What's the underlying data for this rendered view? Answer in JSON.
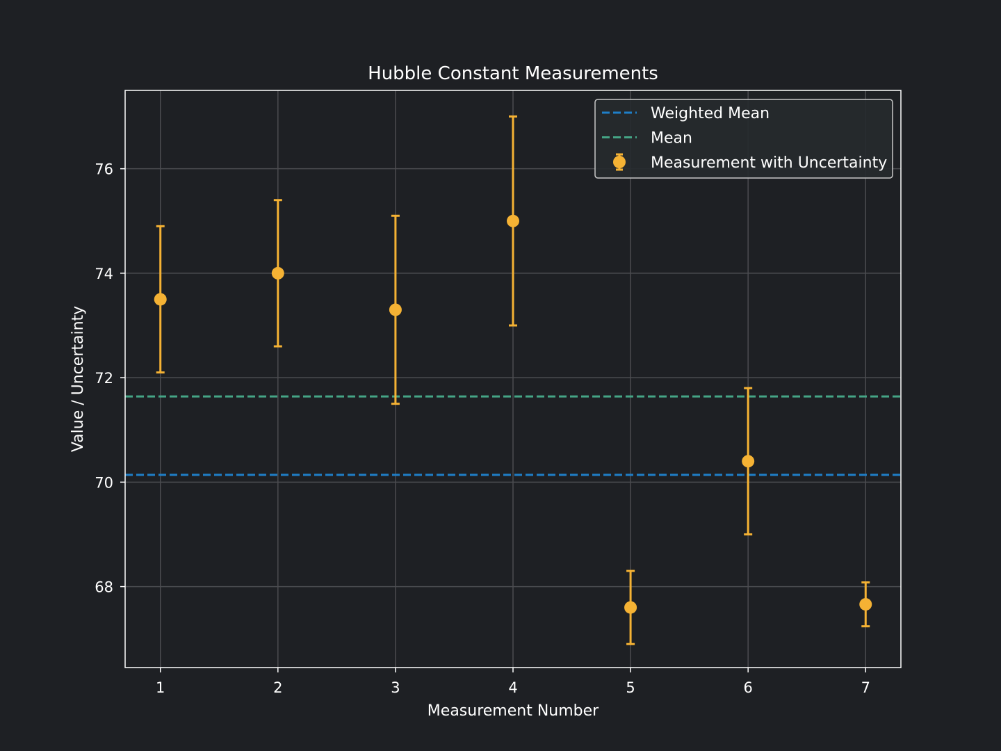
{
  "chart_data": {
    "type": "scatter",
    "title": "Hubble Constant Measurements",
    "xlabel": "Measurement Number",
    "ylabel": "Value / Uncertainty",
    "xlim": [
      0.7,
      7.3
    ],
    "ylim": [
      66.45,
      77.5
    ],
    "xticks": [
      1,
      2,
      3,
      4,
      5,
      6,
      7
    ],
    "yticks": [
      68,
      70,
      72,
      74,
      76
    ],
    "grid": true,
    "legend_placement": "top-right",
    "series": [
      {
        "name": "Measurement with Uncertainty",
        "kind": "errorbar",
        "color": "#f5b234",
        "x": [
          1,
          2,
          3,
          4,
          5,
          6,
          7
        ],
        "y": [
          73.5,
          74.0,
          73.3,
          75.0,
          67.6,
          70.4,
          67.66
        ],
        "yerr": [
          1.4,
          1.4,
          1.8,
          2.0,
          0.7,
          1.4,
          0.42
        ]
      }
    ],
    "hlines": [
      {
        "name": "Weighted Mean",
        "value": 70.14,
        "color": "#1f7fc8",
        "style": "dashed"
      },
      {
        "name": "Mean",
        "value": 71.64,
        "color": "#45a586",
        "style": "dashed"
      }
    ],
    "legend": [
      "Weighted Mean",
      "Mean",
      "Measurement with Uncertainty"
    ],
    "colors": {
      "background": "#1e2024",
      "grid": "#4b4c50",
      "axes": "#ffffff",
      "legend_bg": "#262a2e",
      "legend_border": "#c8c8c8"
    }
  }
}
